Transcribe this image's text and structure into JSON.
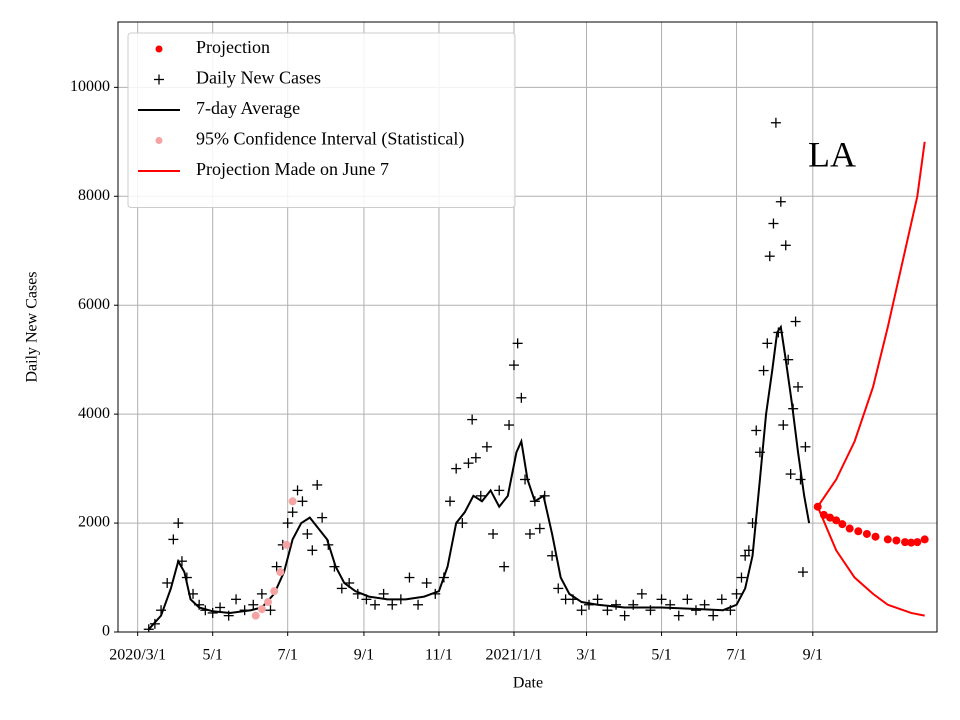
{
  "chart_data": {
    "type": "line",
    "x_label": "Date",
    "y_label": "Daily New Cases",
    "annotation": "LA",
    "grid": true,
    "legend": "upper left",
    "xlim": [
      "2020-02-14",
      "2021-12-11"
    ],
    "ylim": [
      0,
      11200
    ],
    "yticks": [
      0,
      2000,
      4000,
      6000,
      8000,
      10000
    ],
    "xticks": [
      {
        "value": "2020-03-01",
        "label": "2020/3/1"
      },
      {
        "value": "2020-05-01",
        "label": "5/1"
      },
      {
        "value": "2020-07-01",
        "label": "7/1"
      },
      {
        "value": "2020-09-01",
        "label": "9/1"
      },
      {
        "value": "2020-11-01",
        "label": "11/1"
      },
      {
        "value": "2021-01-01",
        "label": "2021/1/1"
      },
      {
        "value": "2021-03-01",
        "label": "3/1"
      },
      {
        "value": "2021-05-01",
        "label": "5/1"
      },
      {
        "value": "2021-07-01",
        "label": "7/1"
      },
      {
        "value": "2021-09-01",
        "label": "9/1"
      }
    ],
    "series": [
      {
        "name": "Projection",
        "color": "#ff0000",
        "marker": "dot",
        "x": [
          "2021-09-05",
          "2021-09-10",
          "2021-09-15",
          "2021-09-20",
          "2021-09-25",
          "2021-10-01",
          "2021-10-08",
          "2021-10-15",
          "2021-10-22",
          "2021-11-01",
          "2021-11-08",
          "2021-11-15",
          "2021-11-20",
          "2021-11-25",
          "2021-12-01"
        ],
        "values": [
          2300,
          2150,
          2100,
          2050,
          1980,
          1900,
          1850,
          1800,
          1750,
          1700,
          1680,
          1650,
          1640,
          1650,
          1700
        ]
      },
      {
        "name": "Daily New Cases",
        "color": "#000000",
        "marker": "plus",
        "x": [
          "2020-03-10",
          "2020-03-15",
          "2020-03-20",
          "2020-03-25",
          "2020-03-30",
          "2020-04-03",
          "2020-04-06",
          "2020-04-10",
          "2020-04-15",
          "2020-04-20",
          "2020-04-25",
          "2020-05-01",
          "2020-05-07",
          "2020-05-14",
          "2020-05-20",
          "2020-05-27",
          "2020-06-03",
          "2020-06-10",
          "2020-06-17",
          "2020-06-22",
          "2020-06-27",
          "2020-07-01",
          "2020-07-05",
          "2020-07-09",
          "2020-07-13",
          "2020-07-17",
          "2020-07-21",
          "2020-07-25",
          "2020-07-29",
          "2020-08-03",
          "2020-08-08",
          "2020-08-14",
          "2020-08-20",
          "2020-08-27",
          "2020-09-03",
          "2020-09-10",
          "2020-09-17",
          "2020-09-24",
          "2020-10-01",
          "2020-10-08",
          "2020-10-15",
          "2020-10-22",
          "2020-10-29",
          "2020-11-05",
          "2020-11-10",
          "2020-11-15",
          "2020-11-20",
          "2020-11-25",
          "2020-11-28",
          "2020-12-01",
          "2020-12-05",
          "2020-12-10",
          "2020-12-15",
          "2020-12-20",
          "2020-12-24",
          "2020-12-28",
          "2021-01-01",
          "2021-01-04",
          "2021-01-07",
          "2021-01-10",
          "2021-01-14",
          "2021-01-18",
          "2021-01-22",
          "2021-01-26",
          "2021-02-01",
          "2021-02-06",
          "2021-02-12",
          "2021-02-18",
          "2021-02-25",
          "2021-03-03",
          "2021-03-10",
          "2021-03-18",
          "2021-03-25",
          "2021-04-01",
          "2021-04-08",
          "2021-04-15",
          "2021-04-22",
          "2021-05-01",
          "2021-05-08",
          "2021-05-15",
          "2021-05-22",
          "2021-05-29",
          "2021-06-05",
          "2021-06-12",
          "2021-06-19",
          "2021-06-26",
          "2021-07-01",
          "2021-07-05",
          "2021-07-08",
          "2021-07-11",
          "2021-07-14",
          "2021-07-17",
          "2021-07-20",
          "2021-07-23",
          "2021-07-26",
          "2021-07-28",
          "2021-07-31",
          "2021-08-02",
          "2021-08-04",
          "2021-08-06",
          "2021-08-08",
          "2021-08-10",
          "2021-08-12",
          "2021-08-14",
          "2021-08-16",
          "2021-08-18",
          "2021-08-20",
          "2021-08-22",
          "2021-08-24",
          "2021-08-26"
        ],
        "values": [
          50,
          150,
          400,
          900,
          1700,
          2000,
          1300,
          1000,
          700,
          500,
          400,
          350,
          450,
          300,
          600,
          400,
          500,
          700,
          400,
          1200,
          1600,
          2000,
          2200,
          2600,
          2400,
          1800,
          1500,
          2700,
          2100,
          1600,
          1200,
          800,
          900,
          700,
          600,
          500,
          700,
          500,
          600,
          1000,
          500,
          900,
          700,
          1000,
          2400,
          3000,
          2000,
          3100,
          3900,
          3200,
          2500,
          3400,
          1800,
          2600,
          1200,
          3800,
          4900,
          5300,
          4300,
          2800,
          1800,
          2400,
          1900,
          2500,
          1400,
          800,
          600,
          600,
          400,
          500,
          600,
          400,
          500,
          300,
          500,
          700,
          400,
          600,
          500,
          300,
          600,
          400,
          500,
          300,
          600,
          400,
          700,
          1000,
          1400,
          1500,
          2000,
          3700,
          3300,
          4800,
          5300,
          6900,
          7500,
          9350,
          5500,
          7900,
          3800,
          7100,
          5000,
          2900,
          4100,
          5700,
          4500,
          2800,
          1100,
          3400
        ]
      },
      {
        "name": "7-day Average",
        "color": "#000000",
        "marker": "none",
        "x": [
          "2020-03-10",
          "2020-03-20",
          "2020-03-28",
          "2020-04-03",
          "2020-04-08",
          "2020-04-13",
          "2020-04-20",
          "2020-05-01",
          "2020-05-15",
          "2020-06-01",
          "2020-06-10",
          "2020-06-20",
          "2020-06-28",
          "2020-07-05",
          "2020-07-12",
          "2020-07-19",
          "2020-07-26",
          "2020-08-02",
          "2020-08-09",
          "2020-08-16",
          "2020-08-25",
          "2020-09-05",
          "2020-09-20",
          "2020-10-05",
          "2020-10-20",
          "2020-11-01",
          "2020-11-08",
          "2020-11-15",
          "2020-11-22",
          "2020-11-29",
          "2020-12-06",
          "2020-12-13",
          "2020-12-20",
          "2020-12-27",
          "2021-01-03",
          "2021-01-07",
          "2021-01-12",
          "2021-01-18",
          "2021-01-25",
          "2021-02-01",
          "2021-02-08",
          "2021-02-15",
          "2021-02-25",
          "2021-03-10",
          "2021-04-01",
          "2021-05-01",
          "2021-06-01",
          "2021-06-20",
          "2021-07-01",
          "2021-07-08",
          "2021-07-14",
          "2021-07-20",
          "2021-07-25",
          "2021-07-30",
          "2021-08-03",
          "2021-08-06",
          "2021-08-10",
          "2021-08-15",
          "2021-08-20",
          "2021-08-25",
          "2021-08-29"
        ],
        "values": [
          50,
          300,
          800,
          1300,
          1100,
          600,
          450,
          380,
          350,
          400,
          450,
          700,
          1100,
          1700,
          2000,
          2100,
          1900,
          1700,
          1200,
          900,
          750,
          650,
          600,
          600,
          650,
          750,
          1200,
          2000,
          2200,
          2500,
          2400,
          2600,
          2300,
          2500,
          3300,
          3500,
          2800,
          2400,
          2500,
          1800,
          1000,
          700,
          550,
          500,
          450,
          450,
          420,
          400,
          500,
          800,
          1400,
          2800,
          4000,
          4800,
          5500,
          5600,
          5000,
          4200,
          3300,
          2500,
          2000
        ]
      },
      {
        "name": "95% Confidence Interval (Statistical)",
        "color": "#f5a3a3",
        "marker": "dot",
        "x": [
          "2020-06-05",
          "2020-06-10",
          "2020-06-15",
          "2020-06-20",
          "2020-06-25",
          "2020-06-30",
          "2020-07-05"
        ],
        "values": [
          300,
          420,
          550,
          750,
          1100,
          1600,
          2400
        ]
      },
      {
        "name": "Projection Made on June 7",
        "color": "#ff0000",
        "marker": "none",
        "x": [
          "2021-09-05",
          "2021-09-20",
          "2021-10-05",
          "2021-10-20",
          "2021-11-01",
          "2021-11-15",
          "2021-11-25",
          "2021-12-01"
        ],
        "values": [
          2300,
          2800,
          3500,
          4500,
          5600,
          7000,
          8000,
          9000
        ]
      },
      {
        "color": "#ff0000",
        "marker": "none",
        "x": [
          "2021-09-05",
          "2021-09-20",
          "2021-10-05",
          "2021-10-20",
          "2021-11-01",
          "2021-11-20",
          "2021-12-01"
        ],
        "values": [
          2300,
          1500,
          1000,
          700,
          500,
          350,
          300
        ]
      }
    ]
  }
}
